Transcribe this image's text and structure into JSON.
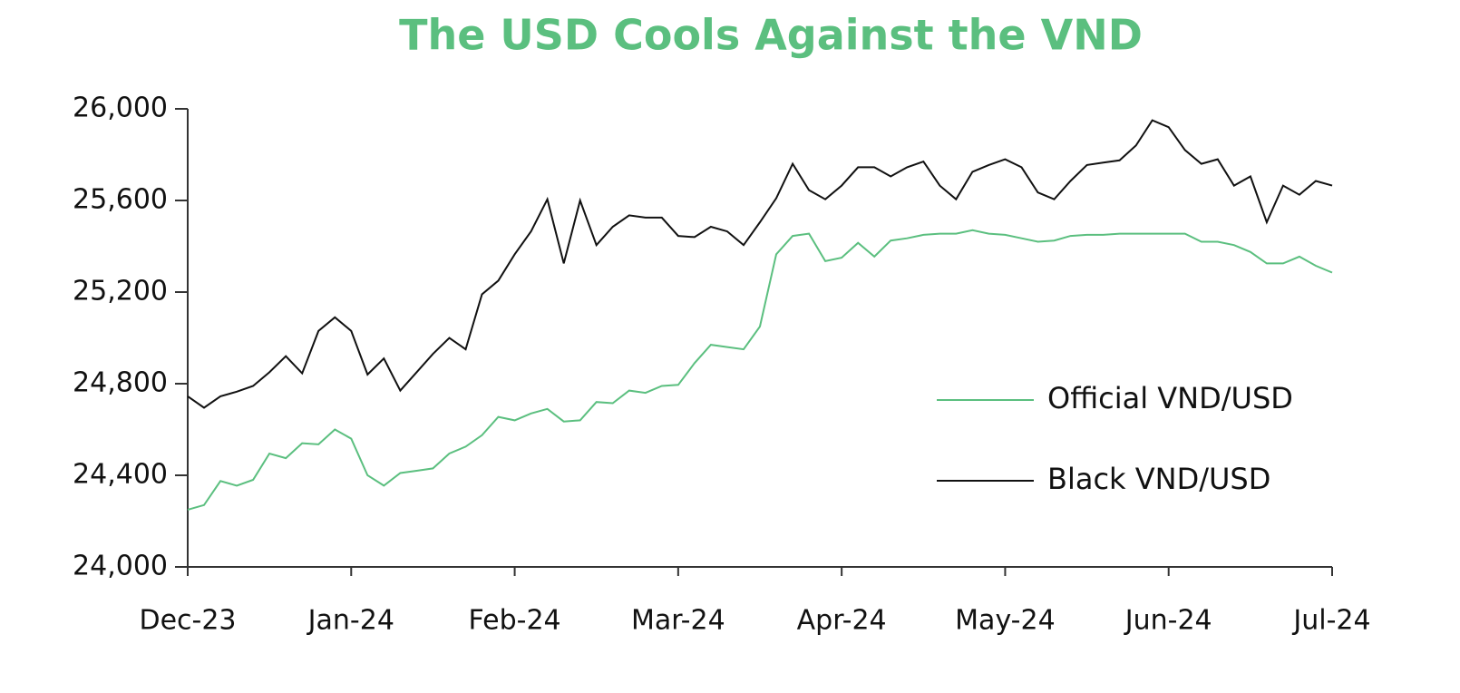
{
  "chart_data": {
    "type": "line",
    "title": "The USD Cools Against the VND",
    "categories": [
      "Dec-23",
      null,
      null,
      null,
      null,
      null,
      null,
      null,
      null,
      null,
      "Jan-24",
      null,
      null,
      null,
      null,
      null,
      null,
      null,
      null,
      null,
      "Feb-24",
      null,
      null,
      null,
      null,
      null,
      null,
      null,
      null,
      null,
      "Mar-24",
      null,
      null,
      null,
      null,
      null,
      null,
      null,
      null,
      null,
      "Apr-24",
      null,
      null,
      null,
      null,
      null,
      null,
      null,
      null,
      null,
      "May-24",
      null,
      null,
      null,
      null,
      null,
      null,
      null,
      null,
      null,
      "Jun-24",
      null,
      null,
      null,
      null,
      null,
      null,
      null,
      null,
      null,
      "Jul-24"
    ],
    "series": [
      {
        "name": "Official VND/USD",
        "color": "#5bbf7f",
        "values": [
          24250,
          24270,
          24375,
          24355,
          24380,
          24495,
          24475,
          24540,
          24535,
          24600,
          24560,
          24400,
          24355,
          24410,
          24420,
          24430,
          24495,
          24525,
          24575,
          24655,
          24640,
          24670,
          24690,
          24635,
          24640,
          24720,
          24715,
          24770,
          24760,
          24790,
          24795,
          24890,
          24970,
          24960,
          24950,
          25050,
          25365,
          25445,
          25455,
          25335,
          25350,
          25415,
          25355,
          25425,
          25435,
          25450,
          25455,
          25455,
          25470,
          25455,
          25450,
          25435,
          25420,
          25425,
          25445,
          25450,
          25450,
          25455,
          25455,
          25455,
          25455,
          25455,
          25420,
          25420,
          25405,
          25375,
          25325,
          25325,
          25355,
          25315,
          25285
        ]
      },
      {
        "name": "Black VND/USD",
        "color": "#111111",
        "values": [
          24745,
          24695,
          24745,
          24765,
          24790,
          24850,
          24920,
          24845,
          25030,
          25090,
          25030,
          24840,
          24910,
          24770,
          24850,
          24930,
          25000,
          24950,
          25190,
          25250,
          25365,
          25465,
          25605,
          25325,
          25600,
          25405,
          25485,
          25535,
          25525,
          25525,
          25445,
          25440,
          25485,
          25465,
          25405,
          25505,
          25610,
          25760,
          25645,
          25605,
          25665,
          25745,
          25745,
          25705,
          25745,
          25770,
          25665,
          25605,
          25725,
          25755,
          25780,
          25745,
          25635,
          25605,
          25685,
          25755,
          25765,
          25775,
          25840,
          25950,
          25920,
          25820,
          25760,
          25780,
          25665,
          25705,
          25505,
          25665,
          25625,
          25685,
          25665
        ]
      }
    ],
    "ylim": [
      24000,
      26000
    ],
    "yticks": [
      {
        "value": 24000,
        "label": "24,000"
      },
      {
        "value": 24400,
        "label": "24,400"
      },
      {
        "value": 24800,
        "label": "24,800"
      },
      {
        "value": 25200,
        "label": "25,200"
      },
      {
        "value": 25600,
        "label": "25,600"
      },
      {
        "value": 26000,
        "label": "26,000"
      }
    ],
    "grid": false,
    "legend": "right"
  }
}
